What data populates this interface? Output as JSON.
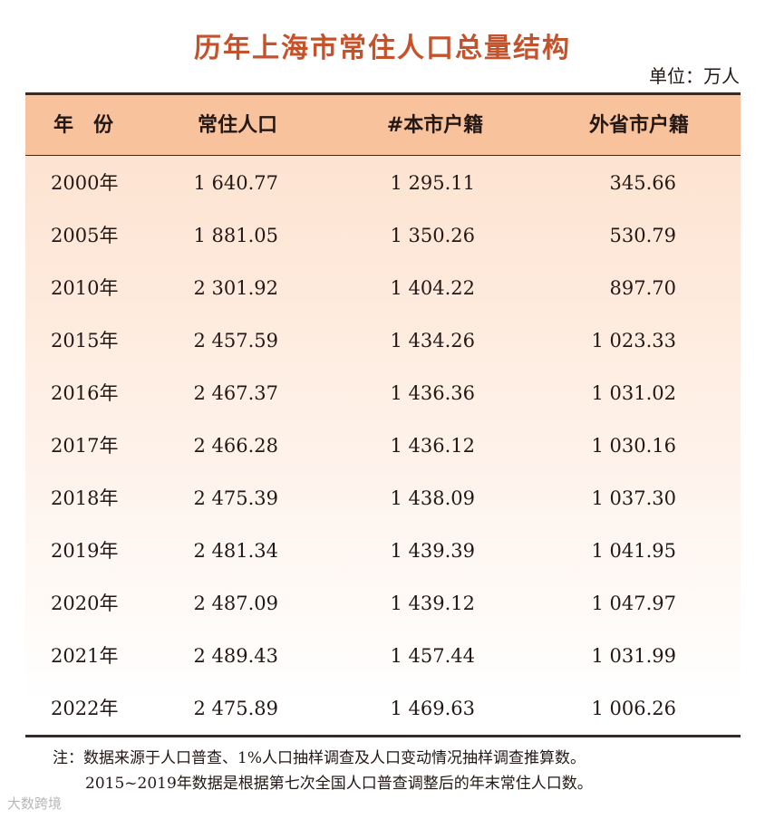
{
  "title": "历年上海市常住人口总量结构",
  "unit": "单位：万人",
  "table": {
    "header": [
      "年　份",
      "常住人口",
      "#本市户籍",
      "外省市户籍"
    ],
    "rows": [
      [
        "2000年",
        "1 640.77",
        "1 295.11",
        "345.66"
      ],
      [
        "2005年",
        "1 881.05",
        "1 350.26",
        "530.79"
      ],
      [
        "2010年",
        "2 301.92",
        "1 404.22",
        "897.70"
      ],
      [
        "2015年",
        "2 457.59",
        "1 434.26",
        "1 023.33"
      ],
      [
        "2016年",
        "2 467.37",
        "1 436.36",
        "1 031.02"
      ],
      [
        "2017年",
        "2 466.28",
        "1 436.12",
        "1 030.16"
      ],
      [
        "2018年",
        "2 475.39",
        "1 438.09",
        "1 037.30"
      ],
      [
        "2019年",
        "2 481.34",
        "1 439.39",
        "1 041.95"
      ],
      [
        "2020年",
        "2 487.09",
        "1 439.12",
        "1 047.97"
      ],
      [
        "2021年",
        "2 489.43",
        "1 457.44",
        "1 031.99"
      ],
      [
        "2022年",
        "2 475.89",
        "1 469.63",
        "1 006.26"
      ]
    ]
  },
  "notes": [
    "注：数据来源于人口普查、1%人口抽样调查及人口变动情况抽样调查推算数。",
    "2015~2019年数据是根据第七次全国人口普查调整后的年末常住人口数。"
  ],
  "watermark": "大数跨境"
}
